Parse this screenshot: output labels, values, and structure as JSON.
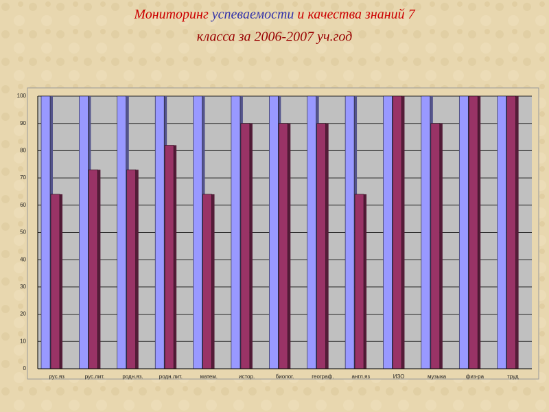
{
  "chart_data": {
    "type": "bar",
    "title": [
      "Мониторинг",
      "успеваемости",
      "и качества знаний 7",
      "класса за 2006-2007  уч.год"
    ],
    "categories": [
      "рус.яз",
      "рус.лит.",
      "родн.яз.",
      "родн.лит.",
      "матем.",
      "истор.",
      "биолог.",
      "географ.",
      "англ.яз",
      "ИЗО",
      "музыка",
      "физ-ра",
      "труд"
    ],
    "series": [
      {
        "color": "#9999ff",
        "values": [
          100,
          100,
          100,
          100,
          100,
          100,
          100,
          100,
          100,
          100,
          100,
          100,
          100
        ]
      },
      {
        "color": "#993366",
        "values": [
          64,
          73,
          73,
          82,
          64,
          90,
          90,
          90,
          64,
          100,
          90,
          100,
          100
        ]
      }
    ],
    "ylim": [
      0,
      100
    ],
    "yticks": [
      0,
      10,
      20,
      30,
      40,
      50,
      60,
      70,
      80,
      90,
      100
    ],
    "grid": true
  }
}
